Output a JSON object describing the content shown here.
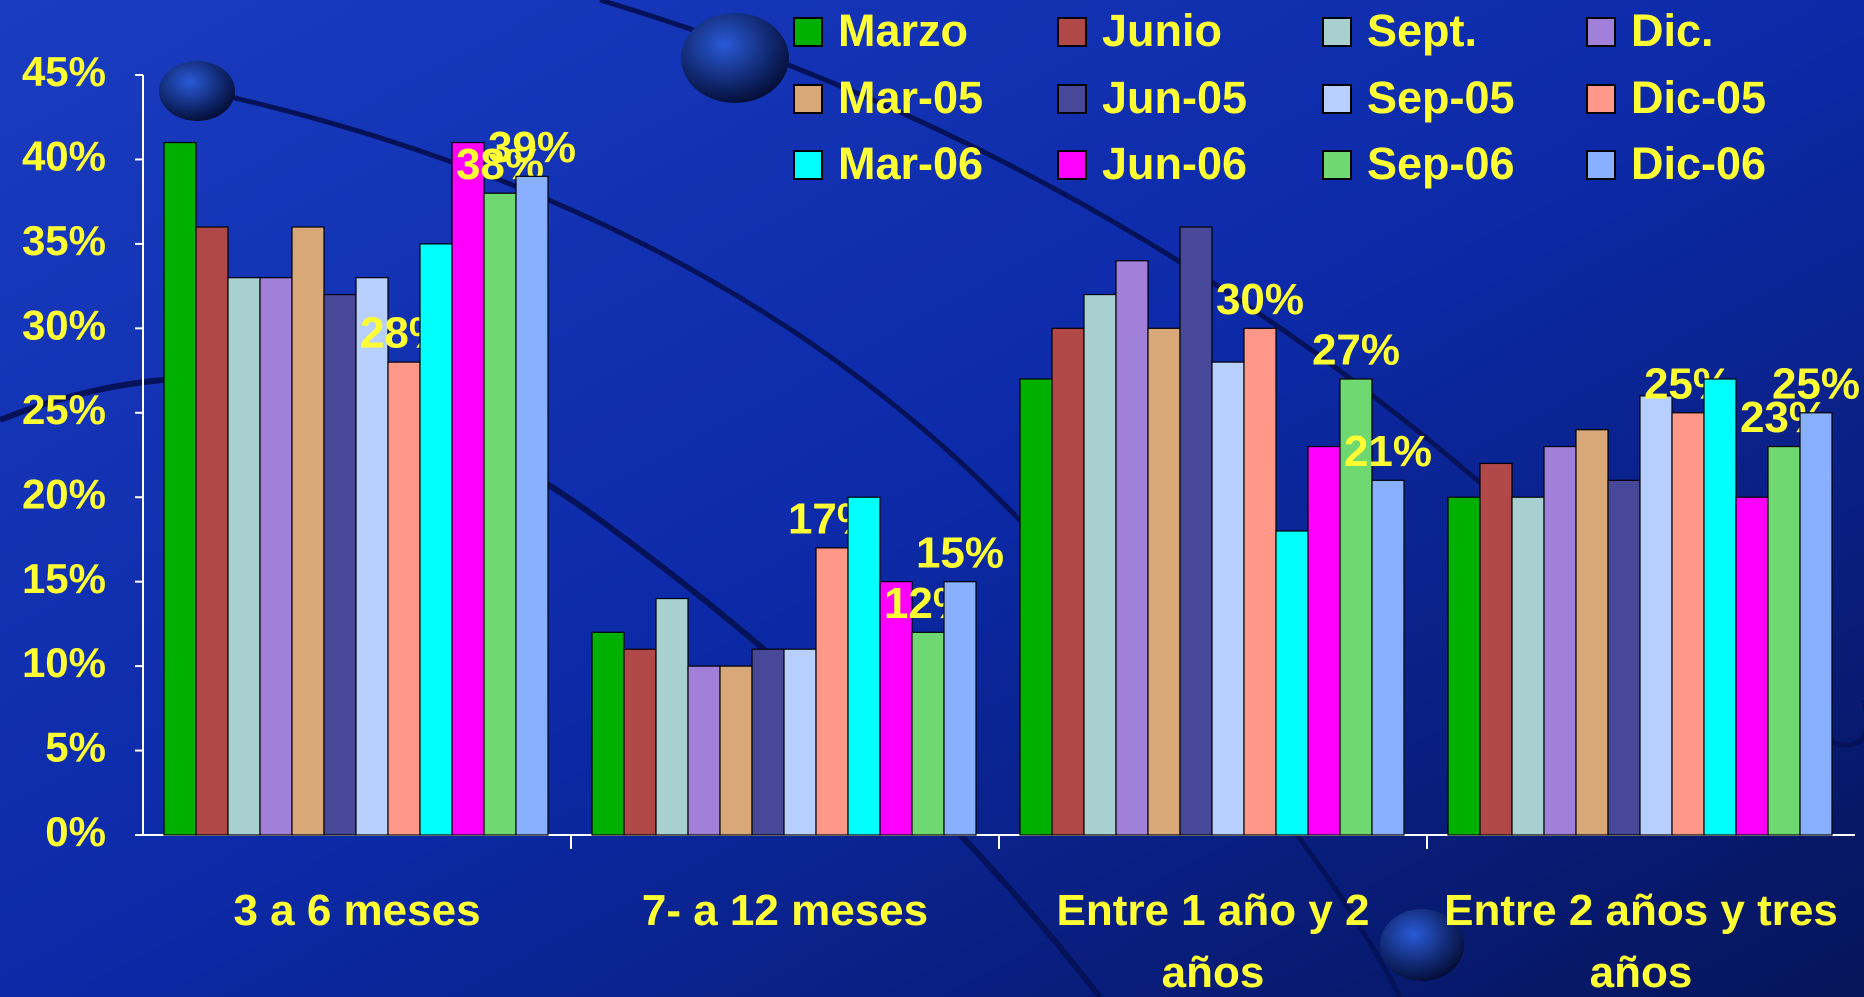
{
  "chart_data": {
    "type": "bar",
    "categories": [
      "3 a 6 meses",
      "7- a 12 meses",
      "Entre 1 año y 2 años",
      "Entre 2 años y tres años"
    ],
    "series": [
      {
        "name": "Marzo",
        "color": "#00b000",
        "values": [
          41,
          12,
          27,
          20
        ]
      },
      {
        "name": "Junio",
        "color": "#b04848",
        "values": [
          36,
          11,
          30,
          22
        ]
      },
      {
        "name": "Sept.",
        "color": "#a8d0d0",
        "values": [
          33,
          14,
          32,
          20
        ]
      },
      {
        "name": "Dic.",
        "color": "#a080d8",
        "values": [
          33,
          10,
          34,
          23
        ]
      },
      {
        "name": "Mar-05",
        "color": "#d8a878",
        "values": [
          36,
          10,
          30,
          24
        ]
      },
      {
        "name": "Jun-05",
        "color": "#484898",
        "values": [
          32,
          11,
          36,
          21
        ]
      },
      {
        "name": "Sep-05",
        "color": "#b8d0ff",
        "values": [
          33,
          11,
          28,
          26
        ]
      },
      {
        "name": "Dic-05",
        "color": "#ff9888",
        "values": [
          28,
          17,
          30,
          25
        ],
        "value_labels": [
          "28%",
          "17%",
          "30%",
          "25%"
        ]
      },
      {
        "name": "Mar-06",
        "color": "#00ffff",
        "values": [
          35,
          20,
          18,
          27
        ]
      },
      {
        "name": "Jun-06",
        "color": "#ff00ff",
        "values": [
          41,
          15,
          23,
          20
        ]
      },
      {
        "name": "Sep-06",
        "color": "#70d870",
        "values": [
          38,
          12,
          27,
          23
        ],
        "value_labels": [
          "38%",
          "12%",
          "27%",
          "23%"
        ]
      },
      {
        "name": "Dic-06",
        "color": "#88b0ff",
        "values": [
          39,
          15,
          21,
          25
        ],
        "value_labels": [
          "39%",
          "15%",
          "21%",
          "25%"
        ]
      }
    ],
    "ylim": [
      0,
      45
    ],
    "yticks": [
      {
        "value": 0,
        "label": "0%"
      },
      {
        "value": 5,
        "label": "5%"
      },
      {
        "value": 10,
        "label": "10%"
      },
      {
        "value": 15,
        "label": "15%"
      },
      {
        "value": 20,
        "label": "20%"
      },
      {
        "value": 25,
        "label": "25%"
      },
      {
        "value": 30,
        "label": "30%"
      },
      {
        "value": 35,
        "label": "35%"
      },
      {
        "value": 40,
        "label": "40%"
      },
      {
        "value": 45,
        "label": "45%"
      }
    ],
    "legend": "top-right"
  }
}
